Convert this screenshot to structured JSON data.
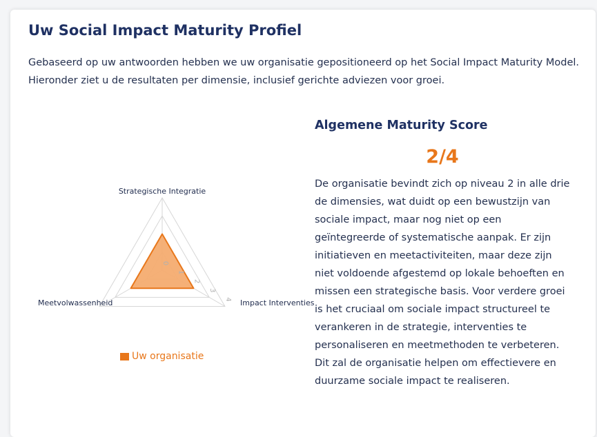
{
  "profile": {
    "title": "Uw Social Impact Maturity Profiel",
    "intro": "Gebaseerd op uw antwoorden hebben we uw organisatie gepositioneerd op het Social Impact Maturity Model. Hieronder ziet u de resultaten per dimensie, inclusief gerichte adviezen voor groei."
  },
  "chart_data": {
    "type": "radar",
    "axes": [
      "Strategische Integratie",
      "Impact Interventies",
      "Meetvolwassenheid"
    ],
    "scale": {
      "min": 0,
      "max": 4,
      "tick_labels": [
        "0",
        "1",
        "2",
        "3",
        "4"
      ]
    },
    "series": [
      {
        "name": "Uw organisatie",
        "values": [
          2,
          2,
          2
        ],
        "color": "#e8771b",
        "fill": "#f4ac70"
      }
    ],
    "gridlines": true,
    "legend_position": "bottom"
  },
  "score": {
    "heading": "Algemene Maturity Score",
    "value": "2/4",
    "description": "De organisatie bevindt zich op niveau 2 in alle drie de dimensies, wat duidt op een bewustzijn van sociale impact, maar nog niet op een geïntegreerde of systematische aanpak. Er zijn initiatieven en meetactiviteiten, maar deze zijn niet voldoende afgestemd op lokale behoeften en missen een strategische basis. Voor verdere groei is het cruciaal om sociale impact structureel te verankeren in de strategie, interventies te personaliseren en meetmethoden te verbeteren. Dit zal de organisatie helpen om effectievere en duurzame sociale impact te realiseren."
  },
  "colors": {
    "accent": "#e8771b",
    "heading": "#1f3163",
    "grid": "#d6d6d6"
  }
}
